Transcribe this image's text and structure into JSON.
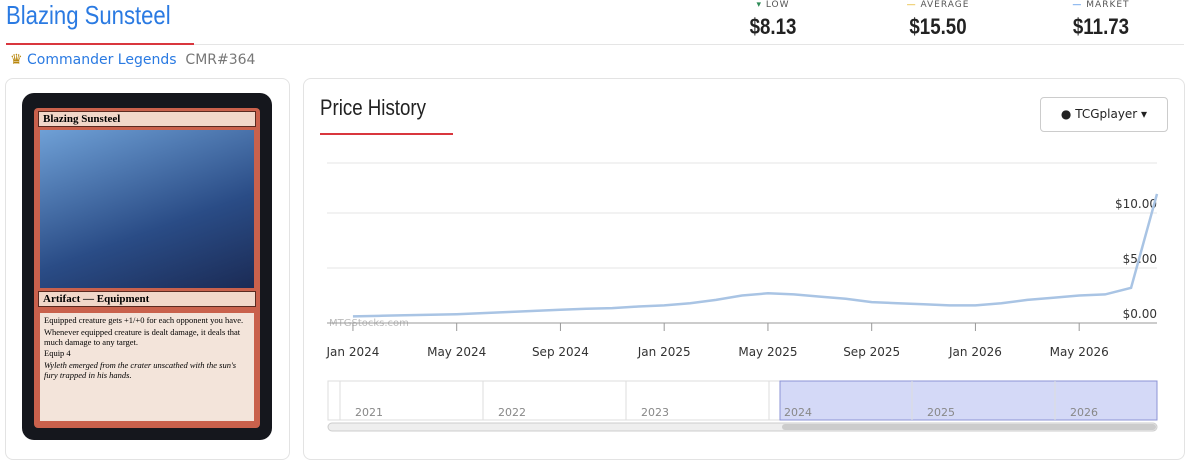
{
  "header": {
    "title": "Blazing Sunsteel",
    "stats": [
      {
        "label": "LOW",
        "value": "$8.13"
      },
      {
        "label": "AVERAGE",
        "value": "$15.50"
      },
      {
        "label": "MARKET",
        "value": "$11.73"
      }
    ],
    "set_name": "Commander Legends",
    "set_code": "CMR#364"
  },
  "card": {
    "name": "Blazing Sunsteel",
    "type_line": "Artifact — Equipment",
    "rules": [
      "Equipped creature gets +1/+0 for each opponent you have.",
      "Whenever equipped creature is dealt damage, it deals that much damage to any target.",
      "Equip 4"
    ],
    "flavor": "Wyleth emerged from the crater unscathed with the sun's fury trapped in his hands."
  },
  "price_history": {
    "title": "Price History",
    "source": "TCGplayer",
    "watermark": "MTGStocks.com",
    "chart": {
      "type": "line",
      "color": "#a9c4e4",
      "x": [
        "2024-01",
        "2024-02",
        "2024-03",
        "2024-04",
        "2024-05",
        "2024-06",
        "2024-07",
        "2024-08",
        "2024-09",
        "2024-10",
        "2024-11",
        "2024-12",
        "2025-01",
        "2025-02",
        "2025-03",
        "2025-04",
        "2025-05",
        "2025-06",
        "2025-07",
        "2025-08",
        "2025-09",
        "2025-10",
        "2025-11",
        "2025-12",
        "2026-01",
        "2026-02",
        "2026-03",
        "2026-04",
        "2026-05",
        "2026-06",
        "2026-07",
        "2026-08"
      ],
      "values": [
        0.6,
        0.65,
        0.7,
        0.75,
        0.8,
        0.9,
        1.0,
        1.1,
        1.2,
        1.3,
        1.35,
        1.5,
        1.6,
        1.8,
        2.1,
        2.5,
        2.7,
        2.6,
        2.4,
        2.2,
        1.9,
        1.8,
        1.7,
        1.6,
        1.6,
        1.8,
        2.1,
        2.3,
        2.5,
        2.6,
        3.2,
        11.73
      ],
      "xlim": [
        "2023-12",
        "2026-08"
      ],
      "xticks": [
        {
          "value": "2024-01",
          "label": "Jan 2024"
        },
        {
          "value": "2024-05",
          "label": "May 2024"
        },
        {
          "value": "2024-09",
          "label": "Sep 2024"
        },
        {
          "value": "2025-01",
          "label": "Jan 2025"
        },
        {
          "value": "2025-05",
          "label": "May 2025"
        },
        {
          "value": "2025-09",
          "label": "Sep 2025"
        },
        {
          "value": "2026-01",
          "label": "Jan 2026"
        },
        {
          "value": "2026-05",
          "label": "May 2026"
        }
      ],
      "ylim": [
        0,
        15
      ],
      "yticks": [
        {
          "value": 0,
          "label": "$0.00"
        },
        {
          "value": 5,
          "label": "$5.00"
        },
        {
          "value": 10,
          "label": "$10.00"
        }
      ]
    },
    "navigator_years": [
      "2021",
      "2022",
      "2023",
      "2024",
      "2025",
      "2026"
    ]
  }
}
